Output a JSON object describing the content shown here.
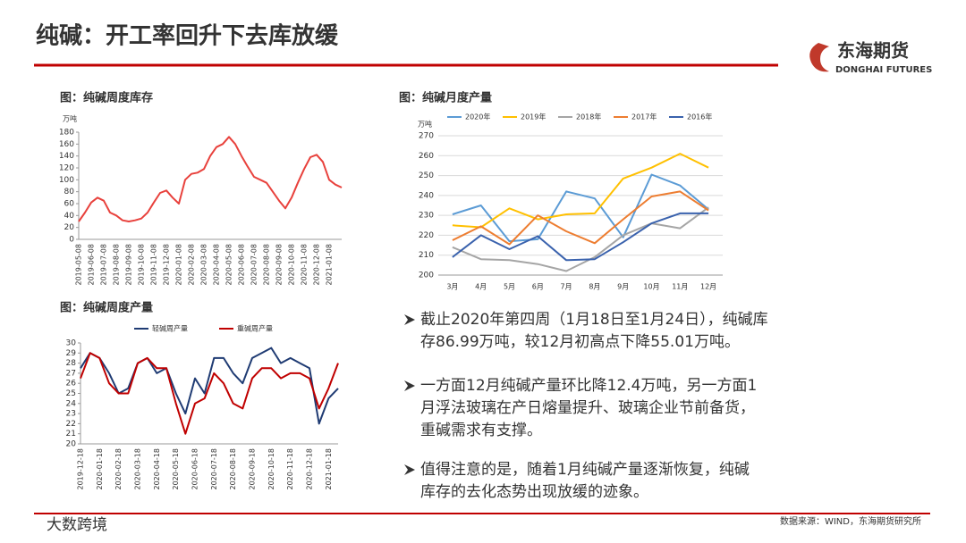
{
  "header": {
    "title": "纯碱：开工率回升下去库放缓",
    "logo_cn": "东海期货",
    "logo_en": "DONGHAI FUTURES"
  },
  "chart_data": [
    {
      "type": "line",
      "title": "图：纯碱周度库存",
      "y_label": "万吨",
      "categories": [
        "2019-05-08",
        null,
        "2019-06-08",
        null,
        "2019-07-08",
        null,
        "2019-08-08",
        null,
        "2019-09-08",
        null,
        "2019-10-08",
        null,
        "2019-11-08",
        null,
        "2019-12-08",
        null,
        "2020-01-08",
        null,
        "2020-02-08",
        null,
        "2020-03-08",
        null,
        "2020-04-08",
        null,
        "2020-05-08",
        null,
        "2020-06-08",
        null,
        "2020-07-08",
        null,
        "2020-08-08",
        null,
        "2020-09-08",
        null,
        "2020-10-08",
        null,
        "2020-11-08",
        null,
        "2020-12-08",
        null,
        "2021-01-08",
        null,
        null
      ],
      "values": [
        30,
        45,
        62,
        70,
        65,
        45,
        40,
        32,
        30,
        32,
        35,
        45,
        62,
        78,
        82,
        70,
        60,
        100,
        110,
        112,
        118,
        140,
        155,
        160,
        172,
        160,
        140,
        122,
        105,
        100,
        95,
        80,
        65,
        52,
        70,
        95,
        118,
        138,
        142,
        130,
        100,
        92,
        87
      ],
      "color": "#e8413c",
      "ylim": [
        0,
        180
      ],
      "yticks": [
        0,
        20,
        40,
        60,
        80,
        100,
        120,
        140,
        160,
        180
      ],
      "grid": false
    },
    {
      "type": "line",
      "title": "图：纯碱月度产量",
      "y_label": "万吨",
      "categories": [
        "3月",
        "4月",
        "5月",
        "6月",
        "7月",
        "8月",
        "9月",
        "10月",
        "11月",
        "12月"
      ],
      "series": [
        {
          "name": "2020年",
          "color": "#5b9bd5",
          "values": [
            230.5,
            235,
            217,
            218,
            242,
            238.5,
            219,
            250.5,
            245,
            233
          ]
        },
        {
          "name": "2019年",
          "color": "#ffc000",
          "values": [
            225,
            224,
            233.5,
            228,
            230.5,
            231,
            248.5,
            254,
            261,
            254
          ]
        },
        {
          "name": "2018年",
          "color": "#a5a5a5",
          "values": [
            214,
            208,
            207.5,
            205.5,
            202,
            209,
            220,
            226,
            223.5,
            234
          ]
        },
        {
          "name": "2017年",
          "color": "#ed7d31",
          "values": [
            217.5,
            224.5,
            215.5,
            230,
            222,
            216,
            228,
            239.5,
            242,
            232.5
          ]
        },
        {
          "name": "2016年",
          "color": "#3a62ad",
          "values": [
            209,
            220,
            213,
            219.5,
            207.5,
            208,
            216.5,
            226,
            231,
            231
          ]
        }
      ],
      "ylim": [
        200,
        270
      ],
      "yticks": [
        200,
        210,
        220,
        230,
        240,
        250,
        260,
        270
      ],
      "grid": true
    },
    {
      "type": "line",
      "title": "图：纯碱周度产量",
      "categories": [
        "2019-12-18",
        null,
        "2020-01-18",
        null,
        "2020-02-18",
        null,
        "2020-03-18",
        null,
        "2020-04-18",
        null,
        "2020-05-18",
        null,
        "2020-06-18",
        null,
        "2020-07-18",
        null,
        "2020-08-18",
        null,
        "2020-09-18",
        null,
        "2020-10-18",
        null,
        "2020-11-18",
        null,
        "2020-12-18",
        null,
        "2021-01-18",
        null
      ],
      "series": [
        {
          "name": "轻碱周产量",
          "color": "#1f3b73",
          "values": [
            27.5,
            29,
            28.5,
            27,
            25,
            25.5,
            28,
            28.5,
            27,
            27.5,
            25,
            23,
            26.5,
            25,
            28.5,
            28.5,
            27,
            26,
            28.5,
            29,
            29.5,
            28,
            28.5,
            28,
            27.5,
            22,
            24.5,
            25.5
          ]
        },
        {
          "name": "重碱周产量",
          "color": "#c00000",
          "values": [
            26.5,
            29,
            28.5,
            26,
            25,
            25,
            28,
            28.5,
            27.5,
            27.5,
            24,
            21,
            24,
            24.5,
            27,
            26,
            24,
            23.5,
            26.5,
            27.5,
            27.5,
            26.5,
            27,
            27,
            26.5,
            23.5,
            25.5,
            28
          ]
        }
      ],
      "ylim": [
        20,
        30
      ],
      "yticks": [
        20,
        21,
        22,
        23,
        24,
        25,
        26,
        27,
        28,
        29,
        30
      ],
      "grid": false
    }
  ],
  "bullets": [
    [
      "截止2020年第四周（1月18日至1月24日），纯碱库",
      "存86.99万吨，较12月初高点下降55.01万吨。"
    ],
    [
      "一方面12月纯碱产量环比降12.4万吨，另一方面1",
      "月浮法玻璃在产日熔量提升、玻璃企业节前备货，",
      "重碱需求有支撑。"
    ],
    [
      "值得注意的是，随着1月纯碱产量逐渐恢复，纯碱",
      "库存的去化态势出现放缓的迹象。"
    ]
  ],
  "source": "数据来源：WIND，东海期货研究所",
  "watermark": "大数跨境"
}
